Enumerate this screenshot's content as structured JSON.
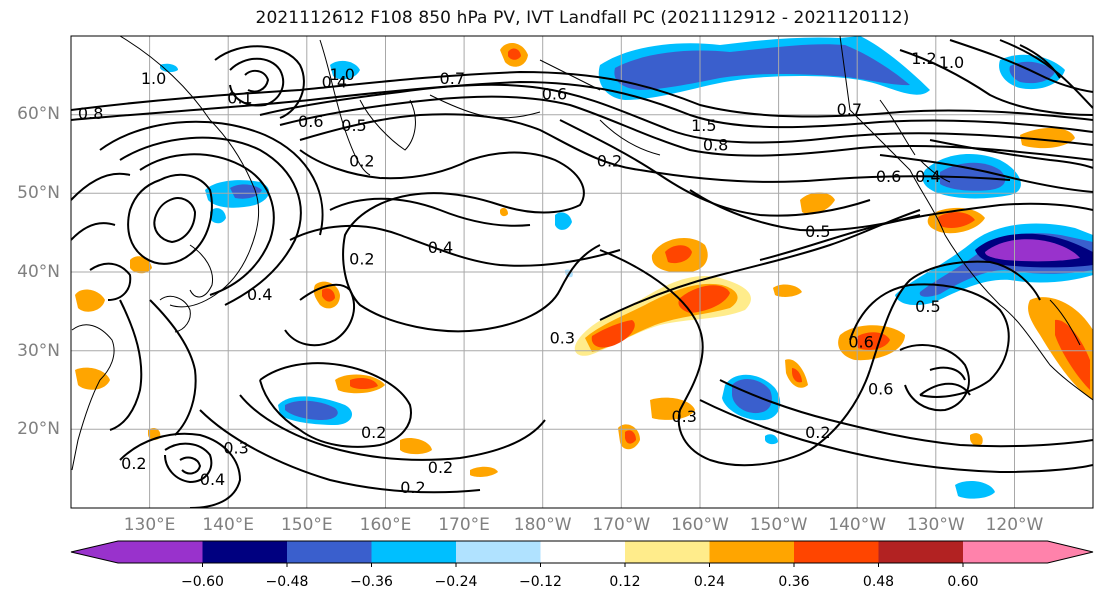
{
  "title": "2021112612 F108 850 hPa PV, IVT Landfall PC (2021112912 - 2021120112)",
  "lat_labels": [
    "60°N",
    "50°N",
    "40°N",
    "30°N",
    "20°N"
  ],
  "lon_labels": [
    "130°E",
    "140°E",
    "150°E",
    "160°E",
    "170°E",
    "180°W",
    "170°W",
    "160°W",
    "150°W",
    "140°W",
    "130°W",
    "120°W"
  ],
  "colorbar": {
    "ticks": [
      "−0.60",
      "−0.48",
      "−0.36",
      "−0.24",
      "−0.12",
      "0.12",
      "0.24",
      "0.36",
      "0.48",
      "0.60"
    ],
    "colors": [
      "#9932cc",
      "#000080",
      "#3a5fcd",
      "#00bfff",
      "#b0e2ff",
      "#ffffff",
      "#ffec8b",
      "#ffa500",
      "#ff4500",
      "#b22222",
      "#ff82ab"
    ]
  },
  "contour_labels": [
    {
      "text": "1.0",
      "lon": 130.5,
      "lat": 64.5
    },
    {
      "text": "0.8",
      "lon": 122.5,
      "lat": 60.0
    },
    {
      "text": "0.1",
      "lon": 141.5,
      "lat": 62.0
    },
    {
      "text": "0.4",
      "lon": 153.5,
      "lat": 64.0
    },
    {
      "text": "1.0",
      "lon": 154.5,
      "lat": 65.0
    },
    {
      "text": "0.7",
      "lon": 168.5,
      "lat": 64.5
    },
    {
      "text": "0.6",
      "lon": 150.5,
      "lat": 59.0
    },
    {
      "text": "0.5",
      "lon": 156.0,
      "lat": 58.5
    },
    {
      "text": "0.2",
      "lon": 157.0,
      "lat": 54.0
    },
    {
      "text": "0.6",
      "lon": 181.5,
      "lat": 62.5
    },
    {
      "text": "0.2",
      "lon": 188.5,
      "lat": 54.0
    },
    {
      "text": "0.4",
      "lon": 167.0,
      "lat": 43.0
    },
    {
      "text": "0.2",
      "lon": 157.0,
      "lat": 41.5
    },
    {
      "text": "0.3",
      "lon": 182.5,
      "lat": 31.5
    },
    {
      "text": "0.8",
      "lon": 202.0,
      "lat": 56.0
    },
    {
      "text": "0.7",
      "lon": 219.0,
      "lat": 60.5
    },
    {
      "text": "0.5",
      "lon": 215.0,
      "lat": 45.0
    },
    {
      "text": "0.6",
      "lon": 220.5,
      "lat": 31.0
    },
    {
      "text": "0.6",
      "lon": 223.0,
      "lat": 25.0
    },
    {
      "text": "0.2",
      "lon": 215.0,
      "lat": 19.5
    },
    {
      "text": "0.3",
      "lon": 198.0,
      "lat": 21.5
    },
    {
      "text": "0.2",
      "lon": 158.5,
      "lat": 19.5
    },
    {
      "text": "0.2",
      "lon": 167.0,
      "lat": 15.0
    },
    {
      "text": "0.2",
      "lon": 163.5,
      "lat": 12.5
    },
    {
      "text": "0.2",
      "lon": 128.0,
      "lat": 15.5
    },
    {
      "text": "0.3",
      "lon": 141.0,
      "lat": 17.5
    },
    {
      "text": "0.4",
      "lon": 138.0,
      "lat": 13.5
    },
    {
      "text": "0.4",
      "lon": 144.0,
      "lat": 37.0
    },
    {
      "text": "0.6",
      "lon": 224.0,
      "lat": 52.0
    },
    {
      "text": "0.4",
      "lon": 229.0,
      "lat": 52.0
    },
    {
      "text": "1.2",
      "lon": 228.5,
      "lat": 67.0
    },
    {
      "text": "1.0",
      "lon": 232.0,
      "lat": 66.5
    },
    {
      "text": "0.5",
      "lon": 229.0,
      "lat": 35.5
    },
    {
      "text": "1.5",
      "lon": 200.5,
      "lat": 58.5
    }
  ]
}
